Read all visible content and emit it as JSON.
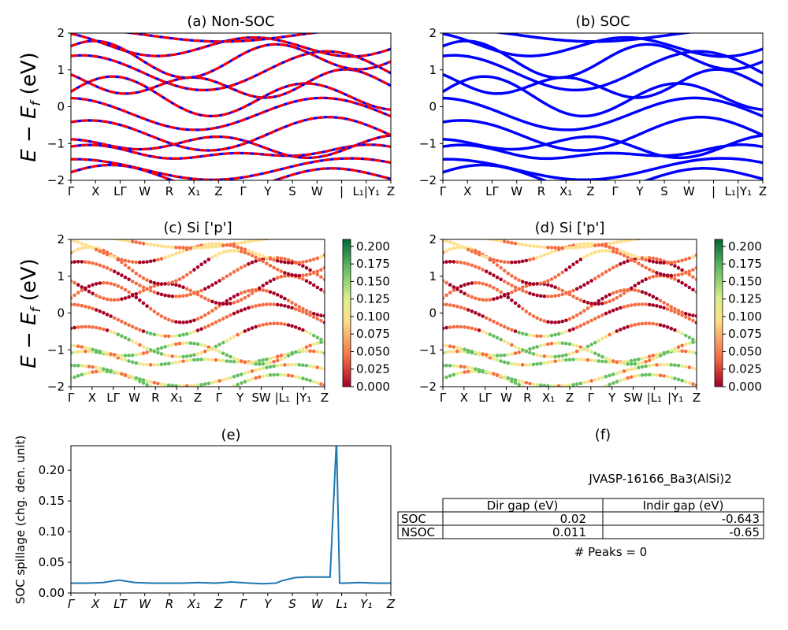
{
  "panels": {
    "a": {
      "title": "(a) Non-SOC"
    },
    "b": {
      "title": "(b) SOC"
    },
    "c": {
      "title": "(c)  Si ['p']"
    },
    "d": {
      "title": "(d) Si ['p']"
    },
    "e": {
      "title": "(e)"
    },
    "f": {
      "title": "(f)"
    }
  },
  "band_axes": {
    "ylabel": "E − E_f (eV)",
    "ylabel_main": "E − E",
    "ylabel_sub": "f",
    "ylabel_unit": " (eV)",
    "ylim": [
      -2,
      2
    ],
    "yticks": [
      "2",
      "1",
      "0",
      "−1",
      "−2"
    ],
    "kpath_labels_top": [
      "Γ",
      "X",
      "LΓ",
      "W",
      "R",
      "X₁",
      "Z",
      "Γ",
      "Y",
      "S",
      "W",
      "|",
      "L₁|Y₁",
      "Z"
    ],
    "kpath_labels_mid": [
      "Γ",
      "X",
      "LΓ",
      "W",
      "R",
      "X₁",
      "Z",
      "Γ",
      "Y",
      "SW",
      "|L₁",
      "|Y₁",
      "Z"
    ]
  },
  "colorbar": {
    "ticks": [
      "0.200",
      "0.175",
      "0.150",
      "0.125",
      "0.100",
      "0.075",
      "0.050",
      "0.025",
      "0.000"
    ],
    "range": [
      0.0,
      0.21
    ],
    "colors": [
      "#a50026",
      "#f46d43",
      "#fee08b",
      "#d9ef8b",
      "#66bd63",
      "#006837"
    ]
  },
  "colors": {
    "nonsoc_bands": "#ff0000",
    "soc_bands": "#0000ff",
    "spillage_line": "#1f77b4"
  },
  "chart_data": {
    "type": "line",
    "title": "(e)",
    "ylabel": "SOC spillage (chg. den. unit)",
    "ylim": [
      0.0,
      0.24
    ],
    "yticks": [
      "0.20",
      "0.15",
      "0.10",
      "0.05",
      "0.00"
    ],
    "xticks": [
      "Γ",
      "X",
      "LT",
      "W",
      "R",
      "X₁",
      "Z",
      "Γ",
      "Y",
      "S",
      "W",
      "L₁",
      "Y₁",
      "Z"
    ],
    "x": [
      0,
      5,
      10,
      15,
      20,
      25,
      30,
      35,
      40,
      45,
      48,
      50,
      53,
      56,
      60,
      64,
      66,
      70,
      74,
      78,
      81,
      83,
      84,
      86,
      90,
      95,
      100
    ],
    "values": [
      0.016,
      0.016,
      0.017,
      0.021,
      0.017,
      0.016,
      0.016,
      0.016,
      0.017,
      0.016,
      0.017,
      0.018,
      0.017,
      0.016,
      0.015,
      0.016,
      0.02,
      0.025,
      0.026,
      0.026,
      0.026,
      0.25,
      0.016,
      0.016,
      0.017,
      0.016,
      0.016
    ]
  },
  "table": {
    "title": "JVASP-16166_Ba3(AlSi)2",
    "headers": [
      "Dir gap (eV)",
      "Indir gap (eV)"
    ],
    "rows": [
      {
        "label": "SOC",
        "dir": "0.02",
        "indir": "-0.643"
      },
      {
        "label": "NSOC",
        "dir": "0.011",
        "indir": "-0.65"
      }
    ],
    "peaks": "# Peaks = 0"
  }
}
